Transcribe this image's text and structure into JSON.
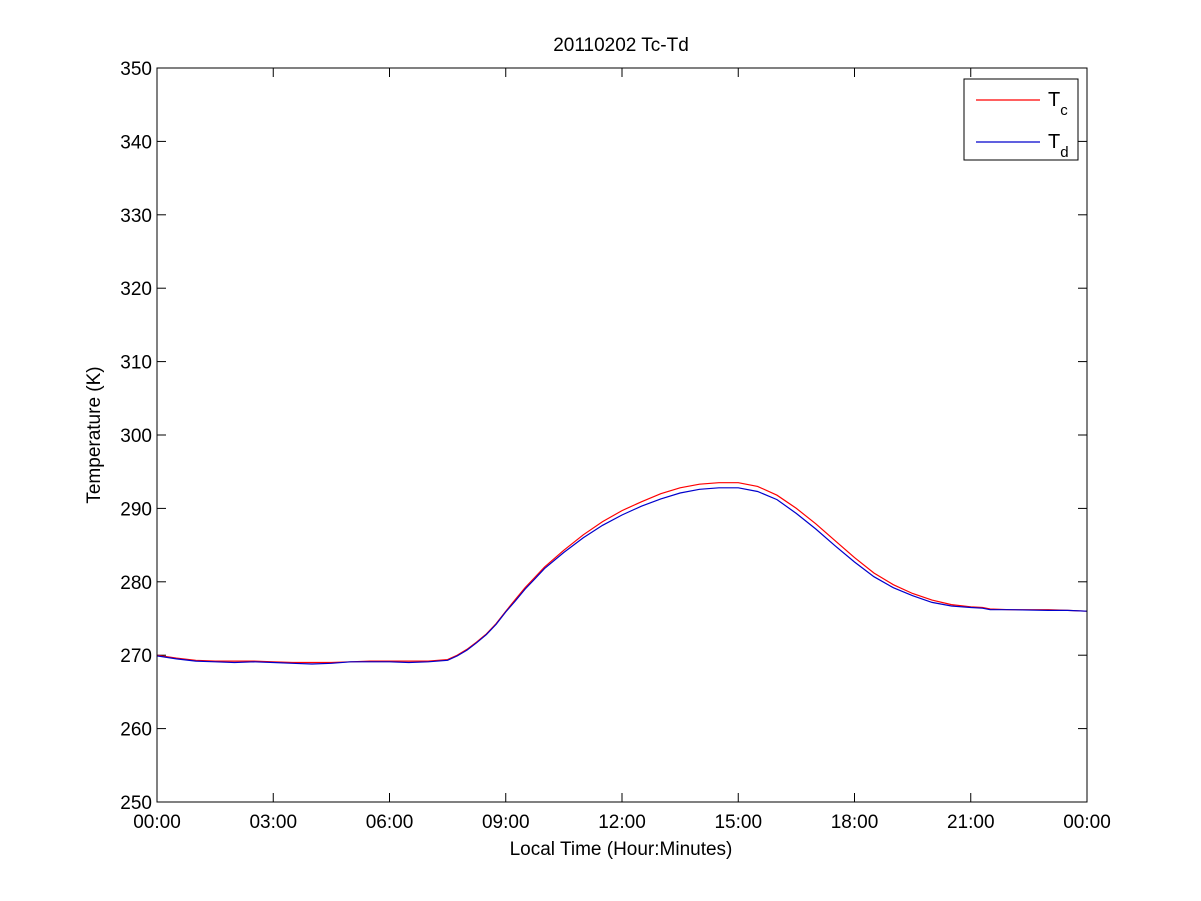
{
  "chart_data": {
    "type": "line",
    "title": "20110202 Tc-Td",
    "xlabel": "Local Time (Hour:Minutes)",
    "ylabel": "Temperature (K)",
    "xlim": [
      0,
      24
    ],
    "ylim": [
      250,
      350
    ],
    "xticks": [
      0,
      3,
      6,
      9,
      12,
      15,
      18,
      21,
      24
    ],
    "xtick_labels": [
      "00:00",
      "03:00",
      "06:00",
      "09:00",
      "12:00",
      "15:00",
      "18:00",
      "21:00",
      "00:00"
    ],
    "yticks": [
      250,
      260,
      270,
      280,
      290,
      300,
      310,
      320,
      330,
      340,
      350
    ],
    "ytick_labels": [
      "250",
      "260",
      "270",
      "280",
      "290",
      "300",
      "310",
      "320",
      "330",
      "340",
      "350"
    ],
    "grid": false,
    "legend_position": "top-right",
    "series": [
      {
        "name": "T_c",
        "legend_main": "T",
        "legend_sub": "c",
        "color": "#ff0000",
        "x": [
          0,
          0.5,
          1,
          1.5,
          2,
          2.5,
          3,
          3.5,
          4,
          4.5,
          5,
          5.5,
          6,
          6.5,
          7,
          7.5,
          7.75,
          8,
          8.25,
          8.5,
          8.75,
          9,
          9.25,
          9.5,
          9.75,
          10,
          10.5,
          11,
          11.5,
          12,
          12.5,
          13,
          13.5,
          14,
          14.5,
          15,
          15.5,
          16,
          16.5,
          17,
          17.5,
          18,
          18.5,
          19,
          19.5,
          20,
          20.5,
          21,
          21.3,
          21.5,
          22,
          23,
          23.5,
          24
        ],
        "y": [
          270.0,
          269.6,
          269.3,
          269.2,
          269.2,
          269.2,
          269.1,
          269.0,
          269.0,
          269.0,
          269.1,
          269.2,
          269.2,
          269.2,
          269.2,
          269.4,
          270.0,
          270.8,
          271.8,
          272.9,
          274.3,
          276.0,
          277.6,
          279.2,
          280.6,
          282.0,
          284.3,
          286.4,
          288.2,
          289.7,
          290.9,
          292.0,
          292.8,
          293.3,
          293.5,
          293.5,
          293.0,
          291.8,
          290.0,
          287.9,
          285.6,
          283.3,
          281.2,
          279.6,
          278.4,
          277.5,
          276.9,
          276.6,
          276.5,
          276.3,
          276.2,
          276.2,
          276.1,
          276.0
        ]
      },
      {
        "name": "T_d",
        "legend_main": "T",
        "legend_sub": "d",
        "color": "#0000cc",
        "x": [
          0,
          0.5,
          1,
          1.5,
          2,
          2.5,
          3,
          3.5,
          4,
          4.5,
          5,
          5.5,
          6,
          6.5,
          7,
          7.5,
          7.75,
          8,
          8.25,
          8.5,
          8.75,
          9,
          9.25,
          9.5,
          9.75,
          10,
          10.5,
          11,
          11.5,
          12,
          12.5,
          13,
          13.5,
          14,
          14.5,
          15,
          15.5,
          16,
          16.5,
          17,
          17.5,
          18,
          18.5,
          19,
          19.5,
          20,
          20.5,
          21,
          21.3,
          21.5,
          22,
          23,
          23.5,
          24
        ],
        "y": [
          269.9,
          269.5,
          269.2,
          269.1,
          269.0,
          269.1,
          269.0,
          268.9,
          268.8,
          268.9,
          269.1,
          269.1,
          269.1,
          269.0,
          269.1,
          269.3,
          269.9,
          270.7,
          271.7,
          272.8,
          274.2,
          275.9,
          277.4,
          279.0,
          280.4,
          281.8,
          284.0,
          286.0,
          287.7,
          289.1,
          290.3,
          291.3,
          292.1,
          292.6,
          292.8,
          292.8,
          292.3,
          291.2,
          289.3,
          287.2,
          284.9,
          282.7,
          280.7,
          279.2,
          278.1,
          277.2,
          276.7,
          276.5,
          276.4,
          276.2,
          276.2,
          276.1,
          276.1,
          276.0
        ]
      }
    ]
  }
}
